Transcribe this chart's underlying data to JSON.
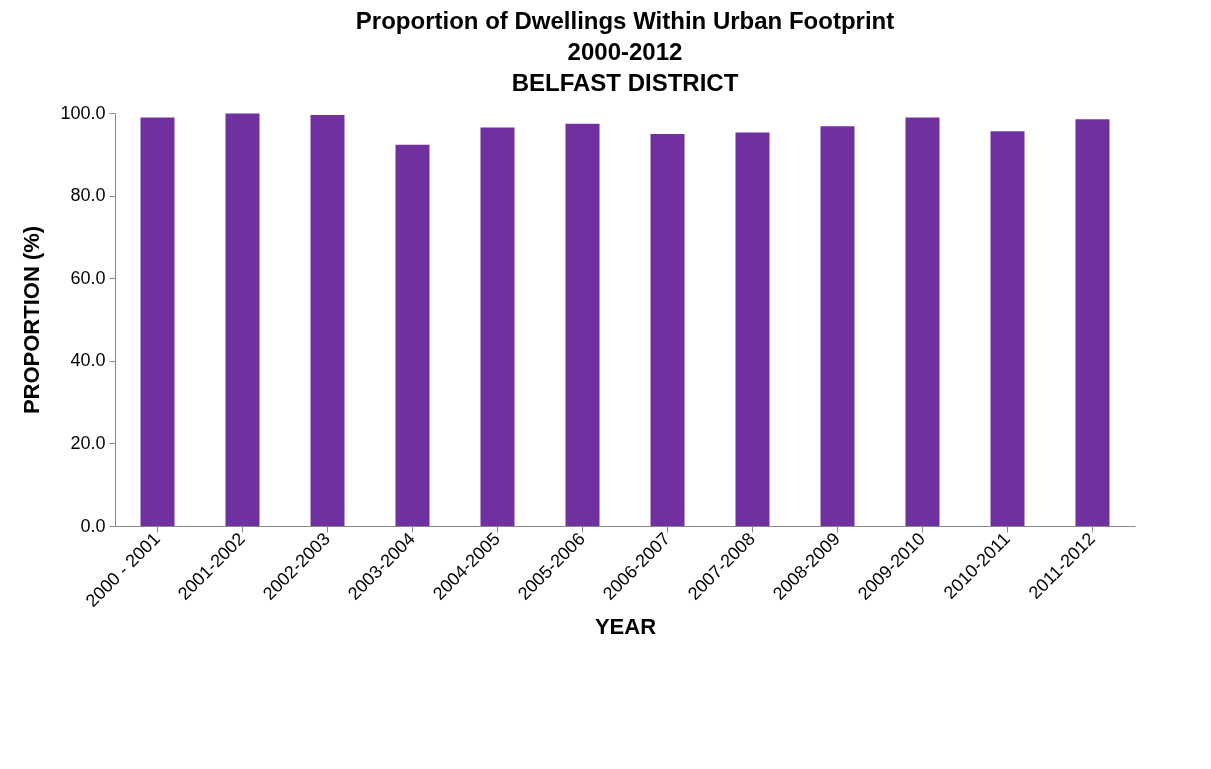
{
  "chart_data": {
    "type": "bar",
    "title": [
      "Proportion of Dwellings Within Urban Footprint",
      "2000-2012",
      "BELFAST DISTRICT"
    ],
    "xlabel": "YEAR",
    "ylabel": "PROPORTION (%)",
    "categories": [
      "2000 - 2001",
      "2001-2002",
      "2002-2003",
      "2003-2004",
      "2004-2005",
      "2005-2006",
      "2006-2007",
      "2007-2008",
      "2008-2009",
      "2009-2010",
      "2010-2011",
      "2011-2012"
    ],
    "values": [
      98.9,
      99.9,
      99.5,
      92.3,
      96.5,
      97.4,
      94.9,
      95.3,
      96.8,
      98.9,
      95.6,
      98.5
    ],
    "color": "#7030a0",
    "ylim": [
      0,
      100
    ],
    "yticks": [
      {
        "value": 0,
        "label": "0.0"
      },
      {
        "value": 20,
        "label": "20.0"
      },
      {
        "value": 40,
        "label": "40.0"
      },
      {
        "value": 60,
        "label": "60.0"
      },
      {
        "value": 80,
        "label": "80.0"
      },
      {
        "value": 100,
        "label": "100.0"
      }
    ],
    "grid": false
  }
}
